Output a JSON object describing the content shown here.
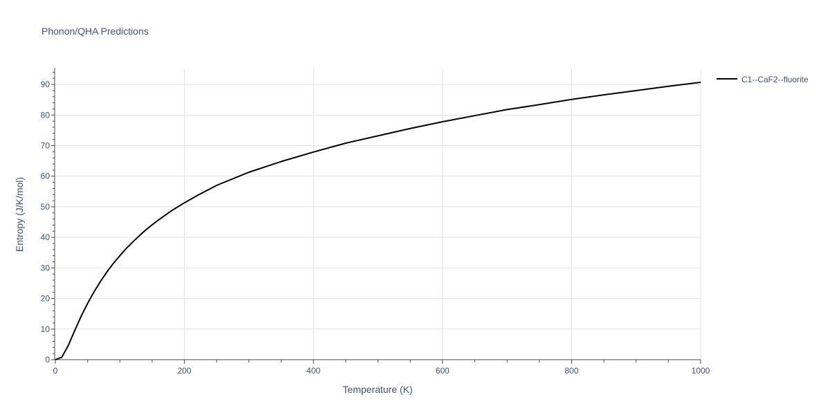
{
  "chart_data": {
    "type": "line",
    "title": "Phonon/QHA Predictions",
    "xlabel": "Temperature (K)",
    "ylabel": "Entropy (J/K/mol)",
    "xlim": [
      0,
      1000
    ],
    "ylim": [
      0,
      95
    ],
    "x_ticks": [
      0,
      200,
      400,
      600,
      800,
      1000
    ],
    "y_ticks": [
      0,
      10,
      20,
      30,
      40,
      50,
      60,
      70,
      80,
      90
    ],
    "grid": true,
    "legend_position": "top-right",
    "series": [
      {
        "name": "C1--CaF2--fluorite",
        "color": "#000000",
        "x": [
          0,
          10,
          20,
          30,
          40,
          50,
          60,
          70,
          80,
          90,
          100,
          110,
          120,
          130,
          140,
          150,
          160,
          170,
          180,
          190,
          200,
          220,
          250,
          300,
          350,
          400,
          450,
          500,
          550,
          600,
          650,
          700,
          750,
          800,
          850,
          900,
          950,
          1000
        ],
        "y": [
          0,
          0.8,
          4.6,
          9.5,
          14.2,
          18.4,
          22.2,
          25.6,
          28.7,
          31.5,
          34.0,
          36.4,
          38.5,
          40.5,
          42.4,
          44.1,
          45.7,
          47.2,
          48.7,
          50.0,
          51.3,
          53.7,
          57.0,
          61.3,
          64.8,
          67.9,
          70.8,
          73.2,
          75.6,
          77.8,
          79.8,
          81.8,
          83.4,
          85.1,
          86.6,
          88.0,
          89.4,
          90.7
        ]
      }
    ]
  }
}
